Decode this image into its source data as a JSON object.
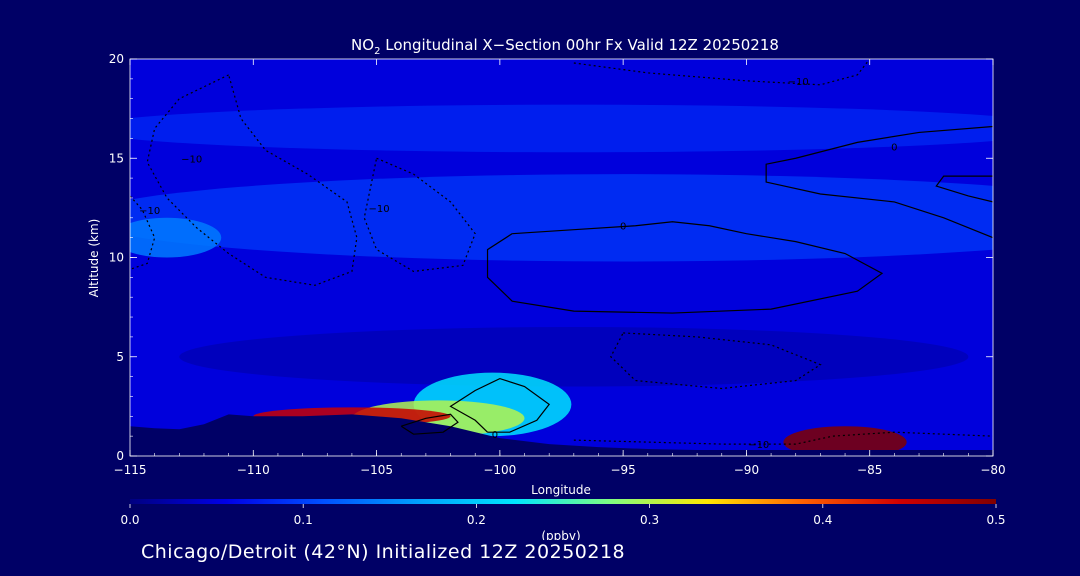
{
  "chart_data": {
    "type": "heatmap",
    "title_prefix": "NO",
    "title_subscript": "2",
    "title_rest": " Longitudinal X−Section 00hr  Fx Valid 12Z 20250218",
    "xlabel": "Longitude",
    "ylabel": "Altitude (km)",
    "xlim": [
      -115,
      -80
    ],
    "ylim": [
      0,
      20
    ],
    "x_ticks": [
      {
        "value": -115,
        "label": "−115"
      },
      {
        "value": -110,
        "label": "−110"
      },
      {
        "value": -105,
        "label": "−105"
      },
      {
        "value": -100,
        "label": "−100"
      },
      {
        "value": -95,
        "label": "−95"
      },
      {
        "value": -90,
        "label": "−90"
      },
      {
        "value": -85,
        "label": "−85"
      },
      {
        "value": -80,
        "label": "−80"
      }
    ],
    "y_ticks": [
      {
        "value": 0,
        "label": "0"
      },
      {
        "value": 5,
        "label": "5"
      },
      {
        "value": 10,
        "label": "10"
      },
      {
        "value": 15,
        "label": "15"
      },
      {
        "value": 20,
        "label": "20"
      }
    ],
    "colorbar": {
      "min": 0.0,
      "max": 0.5,
      "unit_label": "(ppbv)",
      "tick_labels": [
        {
          "value": 0.0,
          "label": "0.0"
        },
        {
          "value": 0.1,
          "label": "0.1"
        },
        {
          "value": 0.2,
          "label": "0.2"
        },
        {
          "value": 0.3,
          "label": "0.3"
        },
        {
          "value": 0.4,
          "label": "0.4"
        },
        {
          "value": 0.5,
          "label": "0.5"
        }
      ],
      "colors": [
        "#000080",
        "#0000e6",
        "#0050ff",
        "#00a0ff",
        "#00e6ff",
        "#80ff80",
        "#ffe600",
        "#ff6000",
        "#d00000",
        "#800000"
      ]
    },
    "background_value": 0.05,
    "terrain_km": [
      [
        -115,
        1.5
      ],
      [
        -114,
        1.4
      ],
      [
        -113,
        1.35
      ],
      [
        -112,
        1.6
      ],
      [
        -111,
        2.1
      ],
      [
        -110,
        2.0
      ],
      [
        -108,
        2.0
      ],
      [
        -106,
        2.1
      ],
      [
        -104,
        1.9
      ],
      [
        -102,
        1.5
      ],
      [
        -100,
        0.9
      ],
      [
        -98,
        0.6
      ],
      [
        -96,
        0.45
      ],
      [
        -94,
        0.35
      ],
      [
        -92,
        0.3
      ],
      [
        -90,
        0.3
      ],
      [
        -88,
        0.3
      ],
      [
        -86,
        0.3
      ],
      [
        -84,
        0.3
      ],
      [
        -82,
        0.3
      ],
      [
        -80,
        0.3
      ]
    ],
    "features": [
      {
        "name": "lower-troposphere-band",
        "lon": -97,
        "alt": 5.0,
        "rx": 16,
        "ry": 1.5,
        "value": 0.03
      },
      {
        "name": "upper-trop-band",
        "lon": -95,
        "alt": 12.0,
        "rx": 22,
        "ry": 2.2,
        "value": 0.09
      },
      {
        "name": "west-upper-blob",
        "lon": -113.5,
        "alt": 11.0,
        "rx": 2.2,
        "ry": 1.0,
        "value": 0.14
      },
      {
        "name": "stratosphere-layer",
        "lon": -97,
        "alt": 16.5,
        "rx": 20,
        "ry": 1.2,
        "value": 0.08
      },
      {
        "name": "light-plume",
        "lon": -100.3,
        "alt": 2.6,
        "rx": 3.2,
        "ry": 1.6,
        "value": 0.22
      },
      {
        "name": "mid-plume",
        "lon": -102.5,
        "alt": 1.9,
        "rx": 3.5,
        "ry": 0.9,
        "value": 0.3
      },
      {
        "name": "west-surface-plume",
        "lon": -106,
        "alt": 2.0,
        "rx": 4.0,
        "ry": 0.45,
        "value": 0.45
      },
      {
        "name": "east-surface-plume",
        "lon": -86,
        "alt": 0.7,
        "rx": 2.5,
        "ry": 0.8,
        "value": 0.5
      }
    ],
    "contours": [
      {
        "name": "contour-0-upper-middle",
        "label": "0",
        "label_at": [
          -95.0,
          11.6
        ],
        "points": [
          [
            -99.5,
            11.2
          ],
          [
            -97,
            11.4
          ],
          [
            -94.5,
            11.6
          ],
          [
            -93,
            11.8
          ],
          [
            -91.5,
            11.6
          ],
          [
            -90,
            11.2
          ],
          [
            -88,
            10.8
          ],
          [
            -86,
            10.2
          ],
          [
            -84.5,
            9.2
          ],
          [
            -85.5,
            8.3
          ],
          [
            -89,
            7.4
          ],
          [
            -93,
            7.2
          ],
          [
            -97,
            7.3
          ],
          [
            -99.5,
            7.8
          ],
          [
            -100.5,
            9.0
          ],
          [
            -100.5,
            10.4
          ],
          [
            -99.5,
            11.2
          ]
        ]
      },
      {
        "name": "contour-0-upper-east",
        "label": "0",
        "label_at": [
          -84.0,
          15.6
        ],
        "points": [
          [
            -80,
            16.6
          ],
          [
            -83,
            16.3
          ],
          [
            -85.5,
            15.8
          ],
          [
            -88,
            15.0
          ],
          [
            -89.2,
            14.7
          ],
          [
            -89.2,
            13.8
          ],
          [
            -87,
            13.2
          ],
          [
            -84,
            12.8
          ],
          [
            -82,
            12.0
          ],
          [
            -80,
            11.0
          ]
        ]
      },
      {
        "name": "contour-0-upper-east-small",
        "label": "",
        "label_at": [
          -80,
          14
        ],
        "points": [
          [
            -80,
            14.1
          ],
          [
            -82,
            14.1
          ],
          [
            -82.3,
            13.6
          ],
          [
            -81,
            13.1
          ],
          [
            -80,
            12.8
          ]
        ]
      },
      {
        "name": "contour-0-low-west",
        "label": "0",
        "label_at": [
          -100.2,
          1.1
        ],
        "points": [
          [
            -100.5,
            1.2
          ],
          [
            -101,
            1.8
          ],
          [
            -102,
            2.5
          ],
          [
            -101,
            3.3
          ],
          [
            -100,
            3.9
          ],
          [
            -99,
            3.5
          ],
          [
            -98,
            2.6
          ],
          [
            -98.5,
            1.8
          ],
          [
            -99.6,
            1.2
          ],
          [
            -100.5,
            1.2
          ]
        ]
      },
      {
        "name": "contour-0-low-inner",
        "label": "",
        "label_at": [
          -103,
          1.6
        ],
        "points": [
          [
            -104,
            1.5
          ],
          [
            -103,
            1.9
          ],
          [
            -102,
            2.1
          ],
          [
            -101.7,
            1.7
          ],
          [
            -102.3,
            1.2
          ],
          [
            -103.5,
            1.1
          ],
          [
            -104,
            1.5
          ]
        ]
      }
    ],
    "dotted_contours": [
      {
        "name": "dotted-contour-west-upper",
        "label": "−10",
        "label_at": [
          -112.5,
          15.0
        ],
        "points": [
          [
            -111,
            19.2
          ],
          [
            -113,
            18.0
          ],
          [
            -114,
            16.5
          ],
          [
            -114.3,
            14.8
          ],
          [
            -113.5,
            13.0
          ],
          [
            -112.3,
            11.5
          ],
          [
            -111.0,
            10.2
          ],
          [
            -109.5,
            9.0
          ],
          [
            -107.5,
            8.6
          ],
          [
            -106.0,
            9.3
          ],
          [
            -105.8,
            11.0
          ],
          [
            -106.2,
            12.8
          ],
          [
            -107.8,
            14.2
          ],
          [
            -109.5,
            15.4
          ],
          [
            -110.5,
            17.0
          ],
          [
            -111,
            19.2
          ]
        ]
      },
      {
        "name": "dotted-contour-west-outer",
        "label": "−10",
        "label_at": [
          -114.2,
          12.4
        ],
        "points": [
          [
            -115,
            13.1
          ],
          [
            -114.5,
            12.4
          ],
          [
            -114,
            11.0
          ],
          [
            -114.3,
            9.7
          ],
          [
            -115,
            9.4
          ]
        ]
      },
      {
        "name": "dotted-contour-mid-upper",
        "label": "−10",
        "label_at": [
          -104.9,
          12.5
        ],
        "points": [
          [
            -105,
            15.0
          ],
          [
            -103.5,
            14.2
          ],
          [
            -102,
            12.8
          ],
          [
            -101,
            11.2
          ],
          [
            -101.5,
            9.6
          ],
          [
            -103.5,
            9.3
          ],
          [
            -105,
            10.4
          ],
          [
            -105.5,
            12.0
          ],
          [
            -105,
            15.0
          ]
        ]
      },
      {
        "name": "dotted-contour-top-east",
        "label": "−10",
        "label_at": [
          -87.9,
          18.9
        ],
        "points": [
          [
            -97,
            19.8
          ],
          [
            -94,
            19.3
          ],
          [
            -90,
            18.9
          ],
          [
            -87,
            18.7
          ],
          [
            -85.5,
            19.2
          ],
          [
            -85,
            20
          ]
        ]
      },
      {
        "name": "dotted-contour-mid-east",
        "label": "",
        "label_at": [
          -88,
          5
        ],
        "points": [
          [
            -95,
            6.2
          ],
          [
            -92,
            6.0
          ],
          [
            -89,
            5.6
          ],
          [
            -87,
            4.6
          ],
          [
            -88,
            3.8
          ],
          [
            -91,
            3.4
          ],
          [
            -94.5,
            3.8
          ],
          [
            -95.5,
            5.0
          ],
          [
            -95,
            6.2
          ]
        ]
      },
      {
        "name": "dotted-contour-surface-east",
        "label": "−10",
        "label_at": [
          -89.5,
          0.6
        ],
        "points": [
          [
            -97,
            0.8
          ],
          [
            -94,
            0.7
          ],
          [
            -91,
            0.6
          ],
          [
            -88,
            0.6
          ],
          [
            -86.5,
            1.0
          ],
          [
            -84,
            1.2
          ],
          [
            -82,
            1.1
          ],
          [
            -80,
            1.0
          ]
        ]
      }
    ]
  },
  "footer": {
    "text": "Chicago/Detroit (42°N) Initialized 12Z 20250218"
  }
}
